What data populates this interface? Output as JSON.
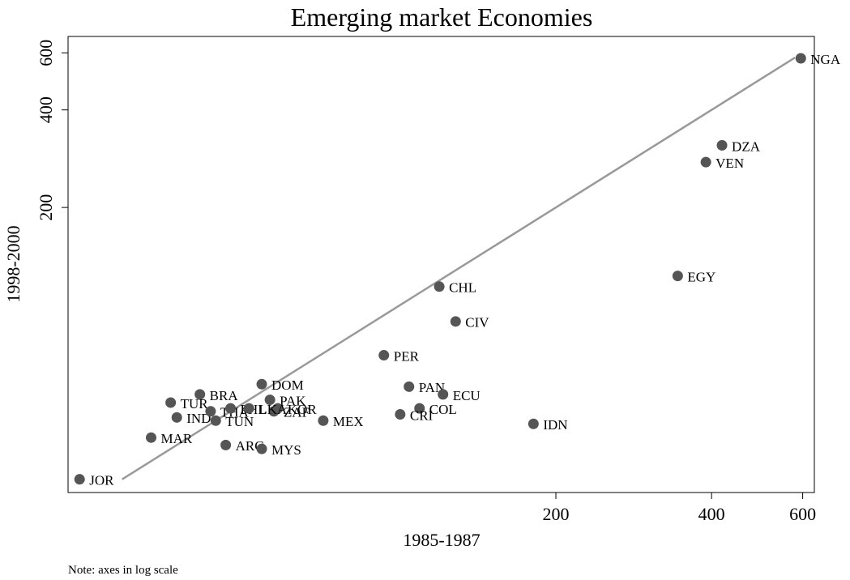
{
  "chart_data": {
    "type": "scatter",
    "title": "Emerging market Economies",
    "x_label": "1985-1987",
    "y_label": "1998-2000",
    "note": "Note: axes in log scale",
    "log_x": true,
    "log_y": true,
    "xlim": [
      22.8,
      632
    ],
    "ylim": [
      26.4,
      674
    ],
    "xticks": [
      200,
      400,
      600
    ],
    "yticks": [
      200,
      400,
      600
    ],
    "point_color": "#555555",
    "line_color": "#999999",
    "reference_line": {
      "x": [
        29,
        580
      ],
      "y": [
        29,
        580
      ]
    },
    "series": [
      {
        "name": "Countries",
        "labels": [
          "NGA",
          "DZA",
          "VEN",
          "EGY",
          "CHL",
          "CIV",
          "PER",
          "PAN",
          "ECU",
          "COL",
          "CRI",
          "IDN",
          "MEX",
          "DOM",
          "PAK",
          "ZAF",
          "KOR",
          "BRA",
          "TUR",
          "IND",
          "TUN",
          "MAR",
          "ARG",
          "MYS",
          "JOR",
          "THA",
          "PHL",
          "LKA"
        ],
        "x": [
          595,
          419,
          390,
          344,
          119,
          128,
          93,
          104,
          121,
          109,
          100,
          181,
          71,
          54,
          56,
          57,
          58,
          41,
          36,
          37,
          44,
          33,
          46,
          54,
          24,
          43,
          47,
          51
        ],
        "y": [
          577,
          311,
          276,
          123,
          114,
          89,
          70,
          56,
          53,
          48,
          46,
          43,
          44,
          57,
          51,
          47,
          48,
          53,
          50,
          45,
          44,
          39,
          37,
          36,
          29,
          47,
          48,
          48
        ]
      }
    ]
  }
}
